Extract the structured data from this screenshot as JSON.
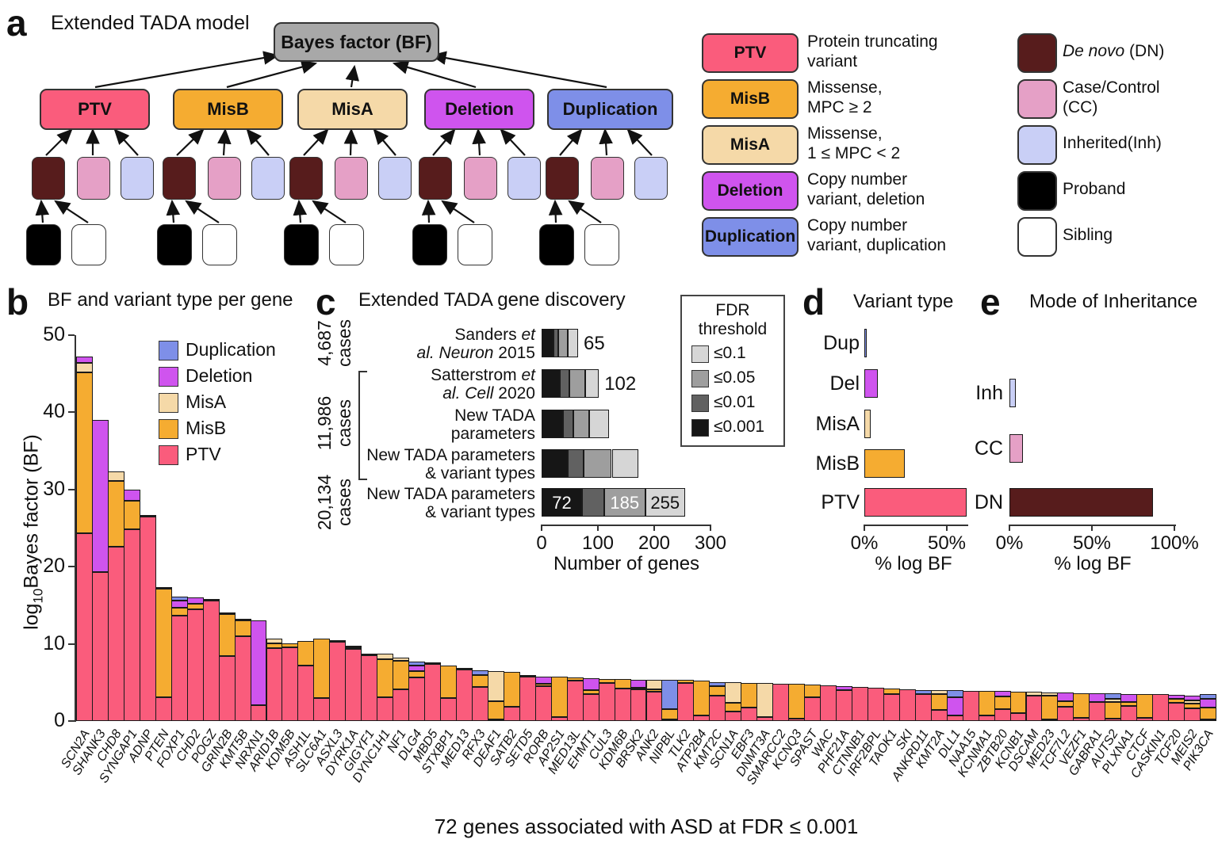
{
  "colors": {
    "ptv": "#FA5C7C",
    "misb": "#F5AC31",
    "misa": "#F5D9A8",
    "deletion": "#CF54EE",
    "duplication": "#7E8FE8",
    "dn": "#571C1C",
    "cc": "#E5A0C6",
    "inh": "#C9CFF6",
    "proband": "#000000",
    "sibling": "#FFFFFF",
    "bf_box": "#A8A8A8",
    "fdr_levels_light_to_dark": [
      "#D6D6D6",
      "#9E9E9E",
      "#616161",
      "#161616"
    ]
  },
  "panel_a": {
    "label": "a",
    "title": "Extended TADA model",
    "bf_box_label": "Bayes factor (BF)",
    "variant_boxes": [
      {
        "label": "PTV",
        "key": "ptv"
      },
      {
        "label": "MisB",
        "key": "misb"
      },
      {
        "label": "MisA",
        "key": "misa"
      },
      {
        "label": "Deletion",
        "key": "deletion"
      },
      {
        "label": "Duplication",
        "key": "duplication"
      }
    ],
    "evidence_keys": [
      "dn",
      "cc",
      "inh"
    ],
    "family_keys": [
      "proband",
      "sibling"
    ],
    "legend_variants": [
      {
        "label": "PTV",
        "key": "ptv",
        "desc_lines": [
          "Protein truncating",
          "variant"
        ]
      },
      {
        "label": "MisB",
        "key": "misb",
        "desc_lines": [
          "Missense,",
          "MPC ≥ 2"
        ]
      },
      {
        "label": "MisA",
        "key": "misa",
        "desc_lines": [
          "Missense,",
          "1 ≤ MPC < 2"
        ]
      },
      {
        "label": "Deletion",
        "key": "deletion",
        "desc_lines": [
          "Copy number",
          "variant, deletion"
        ]
      },
      {
        "label": "Duplication",
        "key": "duplication",
        "desc_lines": [
          "Copy number",
          "variant, duplication"
        ]
      }
    ],
    "legend_inheritance": [
      {
        "key": "dn",
        "lines": [
          [
            {
              "t": "De novo",
              "i": true
            },
            {
              "t": " (DN)"
            }
          ]
        ]
      },
      {
        "key": "cc",
        "lines": [
          [
            {
              "t": "Case/Control"
            }
          ],
          [
            {
              "t": "(CC)"
            }
          ]
        ]
      },
      {
        "key": "inh",
        "lines": [
          [
            {
              "t": "Inherited(Inh)"
            }
          ]
        ]
      },
      {
        "key": "proband",
        "lines": [
          [
            {
              "t": "Proband"
            }
          ]
        ]
      },
      {
        "key": "sibling",
        "lines": [
          [
            {
              "t": "Sibling"
            }
          ]
        ]
      }
    ]
  },
  "chart_data": [
    {
      "panel": "b",
      "panel_letter": "b",
      "type": "bar",
      "title": "BF and variant type per gene",
      "ylabel_pre": "log",
      "ylabel_sub": "10",
      "ylabel_post": "Bayes factor (BF)",
      "ylim": [
        0,
        50
      ],
      "yticks": [
        0,
        10,
        20,
        30,
        40,
        50
      ],
      "legend": [
        {
          "label": "Duplication",
          "key": "duplication"
        },
        {
          "label": "Deletion",
          "key": "deletion"
        },
        {
          "label": "MisA",
          "key": "misa"
        },
        {
          "label": "MisB",
          "key": "misb"
        },
        {
          "label": "PTV",
          "key": "ptv"
        }
      ],
      "stack_keys": [
        "ptv",
        "misb",
        "misa",
        "deletion",
        "duplication"
      ],
      "caption": "72 genes associated with ASD at FDR ≤ 0.001",
      "genes": [
        {
          "g": "SCN2A",
          "v": [
            24.3,
            20.9,
            1.2,
            0.8,
            0
          ]
        },
        {
          "g": "SHANK3",
          "v": [
            19.3,
            0,
            0,
            19.7,
            0
          ]
        },
        {
          "g": "CHD8",
          "v": [
            22.6,
            8.5,
            1.2,
            0,
            0
          ]
        },
        {
          "g": "SYNGAP1",
          "v": [
            24.8,
            3.7,
            0,
            1.5,
            0
          ]
        },
        {
          "g": "ADNP",
          "v": [
            26.5,
            0.2,
            0,
            0,
            0
          ]
        },
        {
          "g": "PTEN",
          "v": [
            3.1,
            14.0,
            0.3,
            0,
            0
          ]
        },
        {
          "g": "FOXP1",
          "v": [
            13.7,
            1.0,
            0,
            0.9,
            0.5
          ]
        },
        {
          "g": "CHD2",
          "v": [
            14.5,
            0.7,
            0,
            0.8,
            0
          ]
        },
        {
          "g": "POGZ",
          "v": [
            15.6,
            0.2,
            0,
            0,
            0
          ]
        },
        {
          "g": "GRIN2B",
          "v": [
            8.4,
            5.5,
            0.2,
            0,
            0
          ]
        },
        {
          "g": "KMT5B",
          "v": [
            11.0,
            2.0,
            0,
            0.2,
            0
          ]
        },
        {
          "g": "NRXN1",
          "v": [
            2.1,
            0,
            0,
            10.9,
            0
          ]
        },
        {
          "g": "ARID1B",
          "v": [
            9.4,
            0.7,
            0.6,
            0,
            0
          ]
        },
        {
          "g": "KDM5B",
          "v": [
            9.6,
            0.5,
            0,
            0,
            0
          ]
        },
        {
          "g": "ASH1L",
          "v": [
            7.2,
            3.2,
            0,
            0,
            0
          ]
        },
        {
          "g": "SLC6A1",
          "v": [
            3.0,
            7.7,
            0,
            0,
            0
          ]
        },
        {
          "g": "ASXL3",
          "v": [
            10.3,
            0.2,
            0,
            0,
            0
          ]
        },
        {
          "g": "DYRK1A",
          "v": [
            9.3,
            0.3,
            0.2,
            0,
            0
          ]
        },
        {
          "g": "GIGYF1",
          "v": [
            8.5,
            0.2,
            0,
            0,
            0
          ]
        },
        {
          "g": "DYNC1H1",
          "v": [
            3.1,
            4.9,
            0.7,
            0,
            0
          ]
        },
        {
          "g": "NF1",
          "v": [
            4.1,
            3.7,
            0.4,
            0,
            0
          ]
        },
        {
          "g": "DLG4",
          "v": [
            5.6,
            0.9,
            0,
            0.7,
            0.5
          ]
        },
        {
          "g": "MBD5",
          "v": [
            7.4,
            0.1,
            0,
            0,
            0
          ]
        },
        {
          "g": "STXBP1",
          "v": [
            3.0,
            4.2,
            0,
            0,
            0
          ]
        },
        {
          "g": "MED13",
          "v": [
            6.7,
            0.1,
            0,
            0,
            0
          ]
        },
        {
          "g": "RFX3",
          "v": [
            4.4,
            1.6,
            0,
            0,
            0.6
          ]
        },
        {
          "g": "DEAF1",
          "v": [
            0.2,
            2.4,
            3.9,
            0,
            0
          ]
        },
        {
          "g": "SATB2",
          "v": [
            1.9,
            4.5,
            0,
            0,
            0
          ]
        },
        {
          "g": "SETD5",
          "v": [
            5.8,
            0,
            0,
            0.2,
            0
          ]
        },
        {
          "g": "RORB",
          "v": [
            4.5,
            0.3,
            0,
            1.0,
            0
          ]
        },
        {
          "g": "AP2S1",
          "v": [
            0.5,
            5.3,
            0,
            0,
            0
          ]
        },
        {
          "g": "MED13L",
          "v": [
            5.2,
            0.5,
            0,
            0,
            0
          ]
        },
        {
          "g": "EHMT1",
          "v": [
            3.5,
            0.5,
            0,
            1.5,
            0
          ]
        },
        {
          "g": "CUL3",
          "v": [
            4.9,
            0.5,
            0,
            0,
            0
          ]
        },
        {
          "g": "KDM6B",
          "v": [
            4.2,
            1.2,
            0,
            0,
            0
          ]
        },
        {
          "g": "BRSK2",
          "v": [
            4.1,
            0.2,
            0,
            1.0,
            0
          ]
        },
        {
          "g": "ANK2",
          "v": [
            3.8,
            0.3,
            1.2,
            0,
            0
          ]
        },
        {
          "g": "NIPBL",
          "v": [
            0.2,
            1.3,
            0,
            0,
            3.8
          ]
        },
        {
          "g": "TLK2",
          "v": [
            4.9,
            0.4,
            0,
            0,
            0
          ]
        },
        {
          "g": "ATP2B4",
          "v": [
            0.7,
            4.5,
            0,
            0,
            0
          ]
        },
        {
          "g": "KMT2C",
          "v": [
            3.3,
            1.2,
            0,
            0,
            0.5
          ]
        },
        {
          "g": "SCN1A",
          "v": [
            1.2,
            1.2,
            2.6,
            0,
            0
          ]
        },
        {
          "g": "EBF3",
          "v": [
            1.7,
            3.2,
            0,
            0,
            0
          ]
        },
        {
          "g": "DNMT3A",
          "v": [
            0.5,
            0,
            4.4,
            0,
            0
          ]
        },
        {
          "g": "SMARCC2",
          "v": [
            4.8,
            0,
            0,
            0,
            0
          ]
        },
        {
          "g": "KCNQ3",
          "v": [
            0.3,
            4.5,
            0,
            0,
            0
          ]
        },
        {
          "g": "SPAST",
          "v": [
            3.1,
            1.6,
            0,
            0,
            0
          ]
        },
        {
          "g": "WAC",
          "v": [
            4.6,
            0,
            0,
            0,
            0
          ]
        },
        {
          "g": "PHF21A",
          "v": [
            4.0,
            0,
            0,
            0.5,
            0
          ]
        },
        {
          "g": "CTNNB1",
          "v": [
            4.4,
            0,
            0,
            0,
            0
          ]
        },
        {
          "g": "IRF2BPL",
          "v": [
            4.3,
            0,
            0,
            0,
            0
          ]
        },
        {
          "g": "TAOK1",
          "v": [
            3.5,
            0.7,
            0,
            0,
            0
          ]
        },
        {
          "g": "SKI",
          "v": [
            4.1,
            0,
            0,
            0,
            0
          ]
        },
        {
          "g": "ANKRD11",
          "v": [
            3.5,
            0,
            0,
            0,
            0.5
          ]
        },
        {
          "g": "KMT2A",
          "v": [
            1.4,
            2.1,
            0.5,
            0,
            0
          ]
        },
        {
          "g": "DLL1",
          "v": [
            0.7,
            0,
            0,
            2.4,
            0.9
          ]
        },
        {
          "g": "NAA15",
          "v": [
            3.9,
            0,
            0,
            0,
            0
          ]
        },
        {
          "g": "KCNMA1",
          "v": [
            0.7,
            3.2,
            0,
            0,
            0
          ]
        },
        {
          "g": "ZBTB20",
          "v": [
            1.5,
            1.7,
            0,
            0.7,
            0
          ]
        },
        {
          "g": "KCNB1",
          "v": [
            1.0,
            2.8,
            0,
            0,
            0
          ]
        },
        {
          "g": "DSCAM",
          "v": [
            3.3,
            0,
            0.5,
            0,
            0
          ]
        },
        {
          "g": "MED23",
          "v": [
            0.2,
            3.1,
            0.4,
            0,
            0
          ]
        },
        {
          "g": "TCF7L2",
          "v": [
            1.8,
            0.8,
            0,
            1.1,
            0
          ]
        },
        {
          "g": "VEZF1",
          "v": [
            0.4,
            3.2,
            0,
            0,
            0
          ]
        },
        {
          "g": "GABRA1",
          "v": [
            2.5,
            0,
            0,
            1.1,
            0
          ]
        },
        {
          "g": "AUTS2",
          "v": [
            0.3,
            2.2,
            0.4,
            0,
            0.7
          ]
        },
        {
          "g": "PLXNA1",
          "v": [
            2.0,
            0.5,
            0,
            1.0,
            0
          ]
        },
        {
          "g": "CTCF",
          "v": [
            0.4,
            3.1,
            0,
            0,
            0
          ]
        },
        {
          "g": "CASKIN1",
          "v": [
            3.5,
            0,
            0,
            0,
            0
          ]
        },
        {
          "g": "TCF20",
          "v": [
            2.4,
            0.5,
            0,
            0.5,
            0
          ]
        },
        {
          "g": "MEIS2",
          "v": [
            1.6,
            0.7,
            0.4,
            0.6,
            0
          ]
        },
        {
          "g": "PIK3CA",
          "v": [
            0.2,
            1.5,
            0,
            1.2,
            0.6
          ]
        }
      ]
    },
    {
      "panel": "c",
      "panel_letter": "c",
      "type": "bar",
      "title": "Extended TADA gene discovery",
      "xlabel": "Number of genes",
      "xticks": [
        "0",
        "100",
        "200",
        "300"
      ],
      "xlim": [
        0,
        300
      ],
      "fdr_legend": {
        "title_lines": [
          "FDR",
          "threshold"
        ],
        "levels": [
          "≤0.1",
          "≤0.05",
          "≤0.01",
          "≤0.001"
        ]
      },
      "rows": [
        {
          "label_lines": [
            [
              {
                "t": "Sanders "
              },
              {
                "t": "et",
                "i": true
              }
            ],
            [
              {
                "t": "al. Neuron",
                "i": true
              },
              {
                "t": " 2015"
              }
            ]
          ],
          "cum": [
            21,
            30,
            47,
            65
          ],
          "note": "65"
        },
        {
          "label_lines": [
            [
              {
                "t": "Satterstrom "
              },
              {
                "t": "et",
                "i": true
              }
            ],
            [
              {
                "t": "al. Cell",
                "i": true
              },
              {
                "t": " 2020"
              }
            ]
          ],
          "cum": [
            33,
            49,
            77,
            102
          ],
          "note": "102"
        },
        {
          "label_lines": [
            [
              {
                "t": "New TADA"
              }
            ],
            [
              {
                "t": "parameters"
              }
            ]
          ],
          "cum": [
            38,
            57,
            85,
            120
          ]
        },
        {
          "label_lines": [
            [
              {
                "t": "New TADA parameters"
              }
            ],
            [
              {
                "t": "& variant types"
              }
            ]
          ],
          "cum": [
            47,
            75,
            125,
            172
          ]
        },
        {
          "label_lines": [
            [
              {
                "t": "New TADA parameters"
              }
            ],
            [
              {
                "t": "& variant types"
              }
            ]
          ],
          "cum": [
            72,
            111,
            185,
            255
          ],
          "inner_labels": [
            {
              "text": "72",
              "x_genes": 36,
              "color": "#FFFFFF"
            },
            {
              "text": "185",
              "x_genes": 148,
              "color": "#FFFFFF"
            },
            {
              "text": "255",
              "x_genes": 220,
              "color": "#111111"
            }
          ]
        }
      ],
      "case_groups": [
        {
          "lines": [
            "4,687",
            "cases"
          ]
        },
        {
          "lines": [
            "11,986",
            "cases"
          ]
        },
        {
          "lines": [
            "20,134",
            "cases"
          ]
        }
      ]
    },
    {
      "panel": "d",
      "panel_letter": "d",
      "type": "bar",
      "title": "Variant type",
      "xlabel": "% log BF",
      "xticks": [
        "0%",
        "50%"
      ],
      "rows": [
        {
          "label": "Dup",
          "key": "duplication",
          "pct": 1.5
        },
        {
          "label": "Del",
          "key": "deletion",
          "pct": 8
        },
        {
          "label": "MisA",
          "key": "misa",
          "pct": 4
        },
        {
          "label": "MisB",
          "key": "misb",
          "pct": 24.5
        },
        {
          "label": "PTV",
          "key": "ptv",
          "pct": 62
        }
      ]
    },
    {
      "panel": "e",
      "panel_letter": "e",
      "type": "bar",
      "title": "Mode of Inheritance",
      "xlabel": "% log BF",
      "xticks": [
        "0%",
        "50%",
        "100%"
      ],
      "rows": [
        {
          "label": "Inh",
          "key": "inh",
          "pct": 4
        },
        {
          "label": "CC",
          "key": "cc",
          "pct": 8
        },
        {
          "label": "DN",
          "key": "dn",
          "pct": 87
        }
      ]
    }
  ]
}
